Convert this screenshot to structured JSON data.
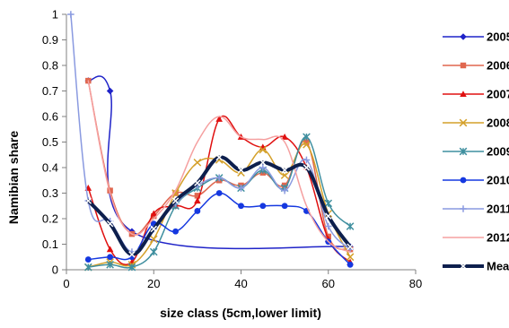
{
  "chart_data": {
    "type": "line",
    "xlabel": "size class (5cm,lower limit)",
    "ylabel": "Namibian share",
    "xlim": [
      0,
      80
    ],
    "ylim": [
      0,
      1
    ],
    "xticks": [
      0,
      20,
      40,
      60,
      80
    ],
    "yticks": [
      0,
      0.1,
      0.2,
      0.3,
      0.4,
      0.5,
      0.6,
      0.7,
      0.8,
      0.9,
      1
    ],
    "grid": false,
    "legend_position": "right",
    "smooth": true,
    "series": [
      {
        "name": "2005",
        "color": "#1f23c8",
        "marker": "diamond",
        "width": 1.5,
        "x": [
          5,
          10,
          15,
          65
        ],
        "y": [
          0.74,
          0.7,
          0.15,
          0.09
        ]
      },
      {
        "name": "2006",
        "color": "#e0674f",
        "marker": "square",
        "width": 1.5,
        "x": [
          5,
          10,
          15,
          20,
          25,
          30,
          35,
          40,
          45,
          50,
          55,
          60,
          65
        ],
        "y": [
          0.74,
          0.31,
          0.14,
          0.21,
          0.3,
          0.29,
          0.35,
          0.33,
          0.38,
          0.33,
          0.5,
          0.13,
          0.08
        ]
      },
      {
        "name": "2007",
        "color": "#e01010",
        "marker": "triangle",
        "width": 1.5,
        "x": [
          5,
          10,
          15,
          20,
          25,
          30,
          35,
          40,
          45,
          50,
          55,
          60,
          65
        ],
        "y": [
          0.32,
          0.08,
          0.03,
          0.22,
          0.25,
          0.27,
          0.59,
          0.52,
          0.48,
          0.52,
          0.4,
          0.12,
          0.03
        ]
      },
      {
        "name": "2008",
        "color": "#d4a02a",
        "marker": "x",
        "width": 1.5,
        "x": [
          5,
          10,
          15,
          20,
          25,
          30,
          35,
          40,
          45,
          50,
          55,
          60,
          65
        ],
        "y": [
          0.01,
          0.03,
          0.02,
          0.12,
          0.3,
          0.42,
          0.43,
          0.38,
          0.47,
          0.37,
          0.49,
          0.22,
          0.05
        ]
      },
      {
        "name": "2009",
        "color": "#3f8f9f",
        "marker": "star",
        "width": 1.5,
        "x": [
          5,
          10,
          15,
          20,
          25,
          30,
          35,
          40,
          45,
          50,
          55,
          60,
          65
        ],
        "y": [
          0.01,
          0.02,
          0.01,
          0.07,
          0.25,
          0.32,
          0.36,
          0.32,
          0.39,
          0.32,
          0.52,
          0.26,
          0.17
        ]
      },
      {
        "name": "2010",
        "color": "#1538e0",
        "marker": "circle",
        "width": 1.5,
        "x": [
          5,
          10,
          15,
          20,
          25,
          30,
          35,
          40,
          45,
          50,
          55,
          60,
          65
        ],
        "y": [
          0.04,
          0.05,
          0.05,
          0.18,
          0.15,
          0.23,
          0.3,
          0.25,
          0.25,
          0.25,
          0.23,
          0.11,
          0.02
        ]
      },
      {
        "name": "2011",
        "color": "#8a9ae0",
        "marker": "plus",
        "width": 1.5,
        "x": [
          1,
          5,
          10,
          15,
          20,
          25,
          30,
          35,
          40,
          45,
          50,
          55,
          60,
          65
        ],
        "y": [
          1.0,
          0.27,
          0.19,
          0.07,
          0.16,
          0.26,
          0.33,
          0.36,
          0.32,
          0.4,
          0.31,
          0.43,
          0.17,
          0.08
        ]
      },
      {
        "name": "2012",
        "color": "#f5a0a0",
        "marker": "none",
        "width": 1.5,
        "x": [
          5,
          10,
          15,
          20,
          25,
          30,
          35,
          40,
          45,
          50,
          55,
          60,
          65
        ],
        "y": [
          0.74,
          0.3,
          0.14,
          0.2,
          0.31,
          0.5,
          0.6,
          0.52,
          0.51,
          0.5,
          0.25,
          0.11,
          0.07
        ]
      },
      {
        "name": "Mean",
        "color": "#0d1f4d",
        "marker": "x",
        "width": 4,
        "x": [
          5,
          10,
          15,
          20,
          25,
          30,
          35,
          40,
          45,
          50,
          55,
          60,
          65
        ],
        "y": [
          0.27,
          0.18,
          0.06,
          0.16,
          0.27,
          0.34,
          0.44,
          0.39,
          0.42,
          0.39,
          0.4,
          0.21,
          0.09
        ]
      }
    ]
  }
}
